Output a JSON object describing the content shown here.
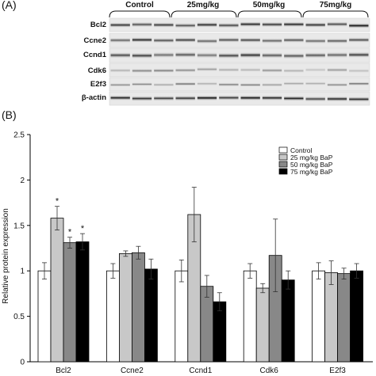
{
  "panel_a": {
    "label": "(A)",
    "groups": [
      "Control",
      "25mg/kg",
      "50mg/kg",
      "75mg/kg"
    ],
    "rows": [
      "Bcl2",
      "Ccne2",
      "Ccnd1",
      "Cdk6",
      "E2f3",
      "β-actin"
    ]
  },
  "panel_b": {
    "label": "(B)"
  },
  "chart_data": {
    "type": "bar",
    "categories": [
      "Bcl2",
      "Ccne2",
      "Ccnd1",
      "Cdk6",
      "E2f3"
    ],
    "ylabel": "Relative protein expression",
    "xlabel": "",
    "ylim": [
      0,
      2.5
    ],
    "yticks": [
      "0",
      "0.5",
      "1",
      "1.5",
      "2",
      "2.5"
    ],
    "legend_position": "top-right",
    "significance_marker": "*",
    "series": [
      {
        "name": "Control",
        "color": "#ffffff",
        "values": [
          1.0,
          1.0,
          1.0,
          1.0,
          1.0
        ],
        "errors": [
          0.09,
          0.08,
          0.12,
          0.08,
          0.09
        ],
        "significant": [
          false,
          false,
          false,
          false,
          false
        ]
      },
      {
        "name": "25 mg/kg BaP",
        "color": "#c8c8c8",
        "values": [
          1.58,
          1.19,
          1.62,
          0.81,
          0.98
        ],
        "errors": [
          0.13,
          0.03,
          0.3,
          0.05,
          0.13
        ],
        "significant": [
          true,
          false,
          false,
          false,
          false
        ]
      },
      {
        "name": "50 mg/kg BaP",
        "color": "#888888",
        "values": [
          1.31,
          1.2,
          0.83,
          1.17,
          0.97
        ],
        "errors": [
          0.06,
          0.07,
          0.12,
          0.4,
          0.06
        ],
        "significant": [
          true,
          false,
          false,
          false,
          false
        ]
      },
      {
        "name": "75 mg/kg BaP",
        "color": "#000000",
        "values": [
          1.32,
          1.02,
          0.66,
          0.9,
          1.0
        ],
        "errors": [
          0.09,
          0.11,
          0.1,
          0.1,
          0.08
        ],
        "significant": [
          true,
          false,
          false,
          false,
          false
        ]
      }
    ]
  }
}
